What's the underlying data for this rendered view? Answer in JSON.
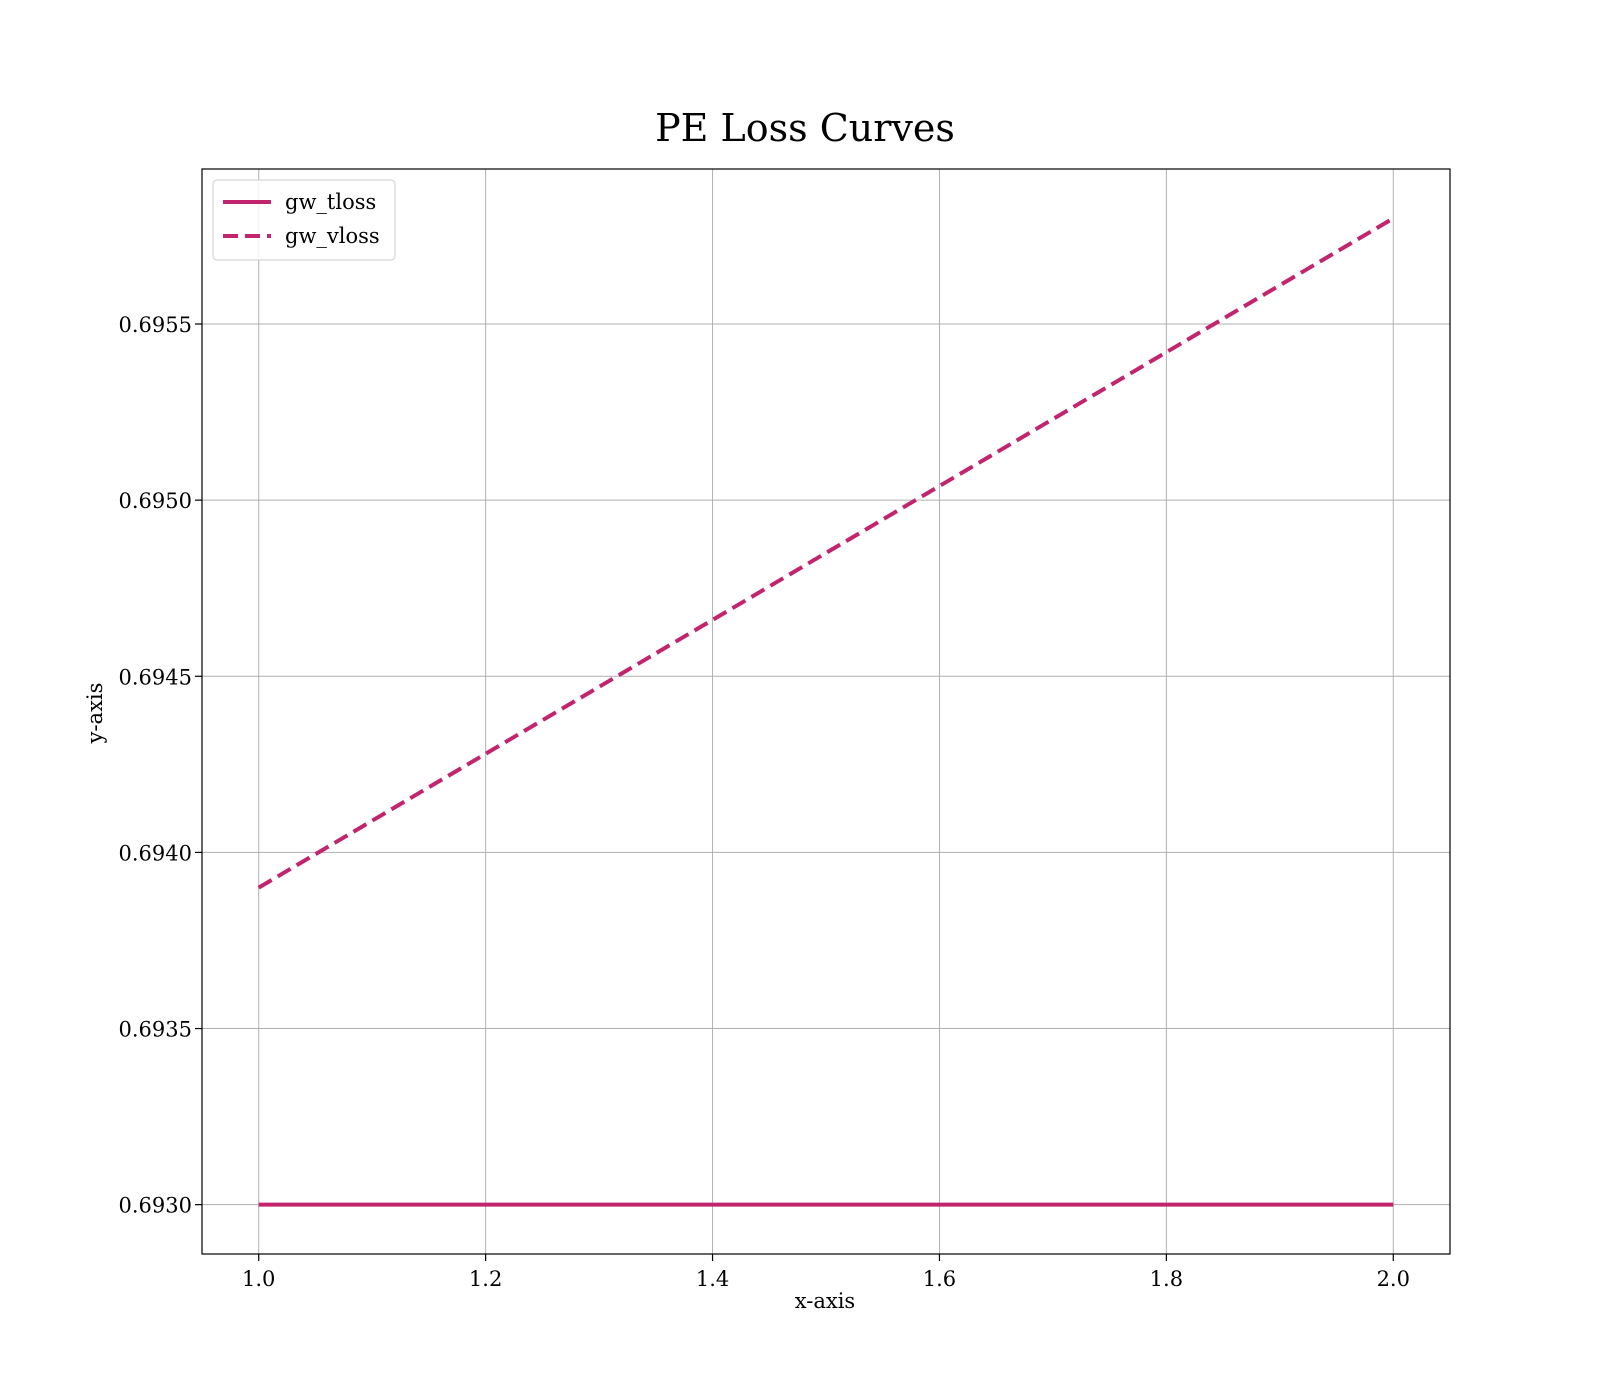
{
  "chart_data": {
    "type": "line",
    "title": "PE Loss Curves",
    "xlabel": "x-axis",
    "ylabel": "y-axis",
    "xlim": [
      0.95,
      2.05
    ],
    "ylim": [
      0.69286,
      0.69594
    ],
    "xticks": [
      1.0,
      1.2,
      1.4,
      1.6,
      1.8,
      2.0
    ],
    "xtick_labels": [
      "1.0",
      "1.2",
      "1.4",
      "1.6",
      "1.8",
      "2.0"
    ],
    "yticks": [
      0.693,
      0.6935,
      0.694,
      0.6945,
      0.695,
      0.6955
    ],
    "ytick_labels": [
      "0.6930",
      "0.6935",
      "0.6940",
      "0.6945",
      "0.6950",
      "0.6955"
    ],
    "grid": true,
    "legend_position": "top-left",
    "series": [
      {
        "name": "gw_tloss",
        "x": [
          1.0,
          2.0
        ],
        "y": [
          0.693,
          0.693
        ],
        "color": "#c2246e",
        "style": "solid"
      },
      {
        "name": "gw_vloss",
        "x": [
          1.0,
          2.0
        ],
        "y": [
          0.6939,
          0.6958
        ],
        "color": "#c2246e",
        "style": "dashed"
      }
    ]
  }
}
